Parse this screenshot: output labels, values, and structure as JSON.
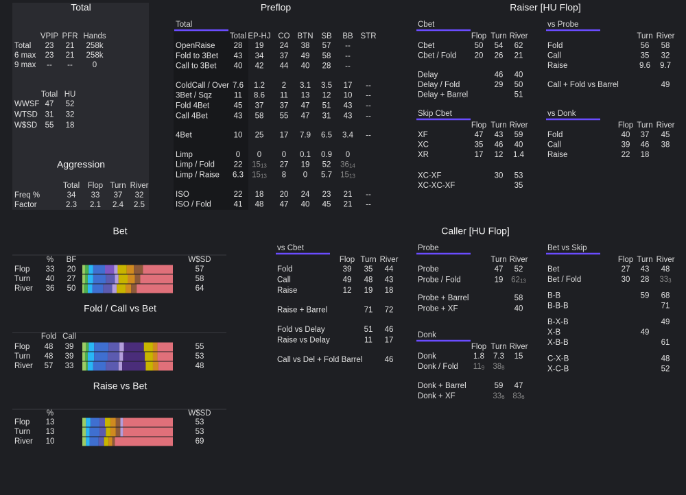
{
  "section_titles": [
    "Total",
    "Preflop",
    "Raiser [HU Flop]",
    "Aggression",
    "Bet",
    "Fold / Call vs Bet",
    "Raise vs Bet",
    "Caller [HU Flop]"
  ],
  "blocks": {
    "total_main": {
      "columns": [
        "VPIP",
        "PFR",
        "Hands"
      ],
      "col_colors": [
        "#e6e24a",
        "#e6e24a",
        "#e6e24a"
      ],
      "groups": [
        [
          [
            "Total",
            23,
            21,
            "258k"
          ],
          [
            "6 max",
            23,
            21,
            "258k"
          ],
          [
            "9 max",
            "--",
            "--",
            0
          ]
        ]
      ]
    },
    "total_hu": {
      "columns": [
        "Total",
        "HU"
      ],
      "col_colors": [
        "#e8e8e8",
        "#e8e8e8"
      ],
      "groups": [
        [
          [
            "WWSF",
            47,
            52
          ],
          [
            "WTSD",
            31,
            32
          ],
          [
            "W$SD",
            55,
            18
          ]
        ]
      ]
    },
    "aggression": {
      "columns": [
        "Total",
        "Flop",
        "Turn",
        "River"
      ],
      "col_colors": [
        "#e6e24a",
        "#6ddc5a",
        "#4fc3f7",
        "#4fc3f7"
      ],
      "groups": [
        [
          [
            "Freq %",
            34,
            33,
            37,
            32
          ],
          [
            "Factor",
            2.3,
            2.1,
            2.4,
            2.5
          ]
        ]
      ]
    },
    "preflop": {
      "header": "Total",
      "columns": [
        "Total",
        "EP-HJ",
        "CO",
        "BTN",
        "SB",
        "BB",
        "STR"
      ],
      "col_colors": [
        "#e6e24a",
        "#e8e8e8",
        "#4fc3f7",
        "#5ab8e8",
        "#9d7ff0",
        "#d05ce6",
        "#888888"
      ],
      "groups": [
        [
          [
            "OpenRaise",
            28,
            19,
            24,
            38,
            57,
            "--"
          ],
          [
            "Fold to 3Bet",
            43,
            34,
            37,
            49,
            58,
            "--"
          ],
          [
            "Call to 3Bet",
            40,
            42,
            44,
            40,
            28,
            "--"
          ]
        ],
        [
          [
            "ColdCall / Over",
            7.6,
            1.2,
            2,
            3.1,
            3.5,
            17,
            "--"
          ],
          [
            "3Bet / Sqz",
            11,
            8.6,
            11,
            13,
            12,
            10,
            "--"
          ],
          [
            "Fold 4Bet",
            45,
            37,
            37,
            47,
            51,
            43,
            "--"
          ],
          [
            "Call 4Bet",
            43,
            58,
            55,
            47,
            31,
            43,
            "--"
          ]
        ],
        [
          [
            "4Bet",
            10,
            25,
            17,
            7.9,
            6.5,
            3.4,
            "--"
          ]
        ],
        [
          [
            "Limp",
            0,
            0,
            0,
            0.1,
            0.9,
            0
          ],
          [
            "Limp / Fold",
            22,
            {
              "text": 15,
              "sub": 13
            },
            27,
            19,
            52,
            {
              "text": 36,
              "sub": 14
            }
          ],
          [
            "Limp / Raise",
            6.3,
            {
              "text": 15,
              "sub": 13
            },
            8,
            0,
            5.7,
            {
              "text": 15,
              "sub": 13
            }
          ]
        ],
        [
          [
            "ISO",
            22,
            18,
            20,
            24,
            23,
            21,
            "--"
          ],
          [
            "ISO / Fold",
            41,
            48,
            47,
            40,
            45,
            21,
            "--"
          ]
        ]
      ]
    },
    "cbet": {
      "header": "Cbet",
      "columns": [
        "Flop",
        "Turn",
        "River"
      ],
      "col_colors": [
        "#6ddc5a",
        "#4fc3f7",
        "#4fc3f7"
      ],
      "groups": [
        [
          [
            "Cbet",
            50,
            54,
            62
          ],
          [
            "Cbet / Fold",
            20,
            26,
            21
          ]
        ],
        [
          [
            "Delay",
            null,
            46,
            40
          ],
          [
            "Delay / Fold",
            null,
            29,
            50
          ],
          [
            "Delay + Barrel",
            null,
            null,
            51
          ]
        ]
      ]
    },
    "vs_probe": {
      "header": "vs Probe",
      "columns": [
        "Turn",
        "River"
      ],
      "col_colors": [
        "#4fc3f7",
        "#4fc3f7"
      ],
      "groups": [
        [
          [
            "Fold",
            56,
            58
          ],
          [
            "Call",
            35,
            32
          ],
          [
            "Raise",
            9.6,
            9.7
          ]
        ],
        [
          [
            "Call + Fold vs Barrel",
            null,
            49
          ]
        ]
      ]
    },
    "skip_cbet": {
      "header": "Skip Cbet",
      "columns": [
        "Flop",
        "Turn",
        "River"
      ],
      "col_colors": [
        "#6ddc5a",
        "#4fc3f7",
        "#4fc3f7"
      ],
      "groups": [
        [
          [
            "XF",
            47,
            43,
            59
          ],
          [
            "XC",
            35,
            46,
            40
          ],
          [
            "XR",
            17,
            12,
            1.4
          ]
        ],
        [
          [
            "XC-XF",
            null,
            30,
            53
          ],
          [
            "XC-XC-XF",
            null,
            null,
            35
          ]
        ]
      ]
    },
    "vs_donk": {
      "header": "vs Donk",
      "columns": [
        "Flop",
        "Turn",
        "River"
      ],
      "col_colors": [
        "#6ddc5a",
        "#4fc3f7",
        "#4fc3f7"
      ],
      "groups": [
        [
          [
            "Fold",
            40,
            37,
            45
          ],
          [
            "Call",
            39,
            46,
            38
          ],
          [
            "Raise",
            22,
            18
          ]
        ]
      ]
    },
    "bet": {
      "columns": [
        "%",
        "BF",
        "W$SD"
      ],
      "col_colors": [
        "#6ddc5a",
        "#e6e24a",
        "#f0606a"
      ],
      "groups": [
        [
          [
            "Flop",
            33,
            20,
            57
          ],
          [
            "Turn",
            40,
            27,
            58
          ],
          [
            "River",
            36,
            50,
            64
          ]
        ]
      ],
      "bars": [
        [
          {
            "color": "#9ccc65",
            "value": 3
          },
          {
            "color": "#4caf50",
            "value": 4
          },
          {
            "color": "#29b6f6",
            "value": 5
          },
          {
            "color": "#3f6fd0",
            "value": 13
          },
          {
            "color": "#7e57c2",
            "value": 10
          },
          {
            "color": "#b39ddb",
            "value": 4
          },
          {
            "color": "#c8b400",
            "value": 10
          },
          {
            "color": "#d08a20",
            "value": 8
          },
          {
            "color": "#8d5a3a",
            "value": 10
          },
          {
            "color": "#e0707a",
            "value": 33
          }
        ],
        [
          {
            "color": "#9ccc65",
            "value": 3
          },
          {
            "color": "#4caf50",
            "value": 3
          },
          {
            "color": "#29b6f6",
            "value": 6
          },
          {
            "color": "#3f6fd0",
            "value": 14
          },
          {
            "color": "#5c5bb0",
            "value": 10
          },
          {
            "color": "#b39ddb",
            "value": 4
          },
          {
            "color": "#c8b400",
            "value": 10
          },
          {
            "color": "#d08a20",
            "value": 8
          },
          {
            "color": "#8d5a3a",
            "value": 6
          },
          {
            "color": "#e0707a",
            "value": 36
          }
        ],
        [
          {
            "color": "#9ccc65",
            "value": 2
          },
          {
            "color": "#4caf50",
            "value": 4
          },
          {
            "color": "#29b6f6",
            "value": 5
          },
          {
            "color": "#3f6fd0",
            "value": 12
          },
          {
            "color": "#5c5bb0",
            "value": 10
          },
          {
            "color": "#b39ddb",
            "value": 5
          },
          {
            "color": "#c8b400",
            "value": 10
          },
          {
            "color": "#d08a20",
            "value": 6
          },
          {
            "color": "#8d5a3a",
            "value": 6
          },
          {
            "color": "#e0707a",
            "value": 40
          }
        ]
      ]
    },
    "fold_call": {
      "columns": [
        "Fold",
        "Call"
      ],
      "col_colors": [
        "#6ddc5a",
        "#e6e24a",
        "#f0606a"
      ],
      "groups": [
        [
          [
            "Flop",
            48,
            39,
            55
          ],
          [
            "Turn",
            48,
            39,
            53
          ],
          [
            "River",
            57,
            33,
            48
          ]
        ]
      ],
      "bars": [
        [
          {
            "color": "#9ccc65",
            "value": 4
          },
          {
            "color": "#4caf50",
            "value": 3
          },
          {
            "color": "#29b6f6",
            "value": 6
          },
          {
            "color": "#3f6fd0",
            "value": 16
          },
          {
            "color": "#5c5bb0",
            "value": 12
          },
          {
            "color": "#b39ddb",
            "value": 5
          },
          {
            "color": "#4a2d7a",
            "value": 22
          },
          {
            "color": "#c8b400",
            "value": 10
          },
          {
            "color": "#d08a20",
            "value": 5
          },
          {
            "color": "#e0707a",
            "value": 17
          }
        ],
        [
          {
            "color": "#9ccc65",
            "value": 3
          },
          {
            "color": "#4caf50",
            "value": 3
          },
          {
            "color": "#29b6f6",
            "value": 7
          },
          {
            "color": "#3f6fd0",
            "value": 15
          },
          {
            "color": "#5c5bb0",
            "value": 13
          },
          {
            "color": "#b39ddb",
            "value": 4
          },
          {
            "color": "#4a2d7a",
            "value": 24
          },
          {
            "color": "#c8b400",
            "value": 9
          },
          {
            "color": "#d08a20",
            "value": 5
          },
          {
            "color": "#e0707a",
            "value": 17
          }
        ],
        [
          {
            "color": "#9ccc65",
            "value": 4
          },
          {
            "color": "#4caf50",
            "value": 2
          },
          {
            "color": "#29b6f6",
            "value": 6
          },
          {
            "color": "#3f6fd0",
            "value": 14
          },
          {
            "color": "#5c5bb0",
            "value": 14
          },
          {
            "color": "#b39ddb",
            "value": 4
          },
          {
            "color": "#4a2d7a",
            "value": 26
          },
          {
            "color": "#c8b400",
            "value": 8
          },
          {
            "color": "#d08a20",
            "value": 6
          },
          {
            "color": "#e0707a",
            "value": 16
          }
        ]
      ]
    },
    "raise": {
      "columns": [
        "%",
        "W$SD"
      ],
      "col_colors": [
        "#6ddc5a",
        "#f0606a"
      ],
      "groups": [
        [
          [
            "Flop",
            13,
            53
          ],
          [
            "Turn",
            13,
            53
          ],
          [
            "River",
            10,
            69
          ]
        ]
      ],
      "bars": [
        [
          {
            "color": "#9ccc65",
            "value": 4
          },
          {
            "color": "#29b6f6",
            "value": 5
          },
          {
            "color": "#3f6fd0",
            "value": 10
          },
          {
            "color": "#5c5bb0",
            "value": 6
          },
          {
            "color": "#c8b400",
            "value": 6
          },
          {
            "color": "#d08a20",
            "value": 6
          },
          {
            "color": "#8d5a3a",
            "value": 5
          },
          {
            "color": "#b39ddb",
            "value": 3
          },
          {
            "color": "#e0707a",
            "value": 55
          }
        ],
        [
          {
            "color": "#9ccc65",
            "value": 4
          },
          {
            "color": "#29b6f6",
            "value": 4
          },
          {
            "color": "#3f6fd0",
            "value": 11
          },
          {
            "color": "#5c5bb0",
            "value": 7
          },
          {
            "color": "#c8b400",
            "value": 5
          },
          {
            "color": "#d08a20",
            "value": 6
          },
          {
            "color": "#8d5a3a",
            "value": 5
          },
          {
            "color": "#b39ddb",
            "value": 3
          },
          {
            "color": "#e0707a",
            "value": 55
          }
        ],
        [
          {
            "color": "#9ccc65",
            "value": 4
          },
          {
            "color": "#29b6f6",
            "value": 4
          },
          {
            "color": "#3f6fd0",
            "value": 10
          },
          {
            "color": "#5c5bb0",
            "value": 6
          },
          {
            "color": "#c8b400",
            "value": 5
          },
          {
            "color": "#d08a20",
            "value": 4
          },
          {
            "color": "#8d5a3a",
            "value": 3
          },
          {
            "color": "#e0707a",
            "value": 64
          }
        ]
      ]
    },
    "vs_cbet": {
      "header": "vs Cbet",
      "columns": [
        "Flop",
        "Turn",
        "River"
      ],
      "col_colors": [
        "#6ddc5a",
        "#4fc3f7",
        "#4fc3f7"
      ],
      "groups": [
        [
          [
            "Fold",
            39,
            35,
            44
          ],
          [
            "Call",
            49,
            48,
            43
          ],
          [
            "Raise",
            12,
            19,
            18
          ]
        ],
        [
          [
            "Raise + Barrel",
            null,
            71,
            72
          ]
        ],
        [
          [
            "Fold vs Delay",
            null,
            51,
            46
          ],
          [
            "Raise vs Delay",
            null,
            11,
            17
          ]
        ],
        [
          [
            "Call vs Del + Fold Barrel",
            null,
            null,
            46
          ]
        ]
      ]
    },
    "probe": {
      "header": "Probe",
      "columns": [
        "Turn",
        "River"
      ],
      "col_colors": [
        "#4fc3f7",
        "#4fc3f7"
      ],
      "groups": [
        [
          [
            "Probe",
            47,
            52
          ],
          [
            "Probe / Fold",
            19,
            {
              "text": 62,
              "sub": 13
            }
          ]
        ],
        [
          [
            "Probe + Barrel",
            null,
            58
          ],
          [
            "Probe + XF",
            null,
            40
          ]
        ]
      ]
    },
    "donk": {
      "header": "Donk",
      "columns": [
        "Flop",
        "Turn",
        "River"
      ],
      "col_colors": [
        "#c6e04a",
        "#4fc3f7",
        "#4fc3f7"
      ],
      "groups": [
        [
          [
            "Donk",
            1.8,
            7.3,
            15
          ],
          [
            "Donk / Fold",
            {
              "text": 11,
              "sub": 9
            },
            {
              "text": 38,
              "sub": 8
            }
          ]
        ],
        [
          [
            "Donk + Barrel",
            null,
            59,
            47
          ],
          [
            "Donk + XF",
            null,
            {
              "text": 33,
              "sub": 6
            },
            {
              "text": 83,
              "sub": 6
            }
          ]
        ]
      ]
    },
    "bet_vs_skip": {
      "header": "Bet vs Skip",
      "columns": [
        "Flop",
        "Turn",
        "River"
      ],
      "col_colors": [
        "#6ddc5a",
        "#4fc3f7",
        "#4fc3f7"
      ],
      "groups": [
        [
          [
            "Bet",
            27,
            43,
            48
          ],
          [
            "Bet / Fold",
            30,
            28,
            {
              "text": 33,
              "sub": 3
            }
          ]
        ],
        [
          [
            "B-B",
            null,
            59,
            68
          ],
          [
            "B-B-B",
            null,
            null,
            71
          ]
        ],
        [
          [
            "B-X-B",
            null,
            null,
            49
          ],
          [
            "X-B",
            null,
            49
          ],
          [
            "X-B-B",
            null,
            null,
            61
          ]
        ],
        [
          [
            "C-X-B",
            null,
            null,
            48
          ],
          [
            "X-C-B",
            null,
            null,
            52
          ]
        ]
      ]
    }
  }
}
